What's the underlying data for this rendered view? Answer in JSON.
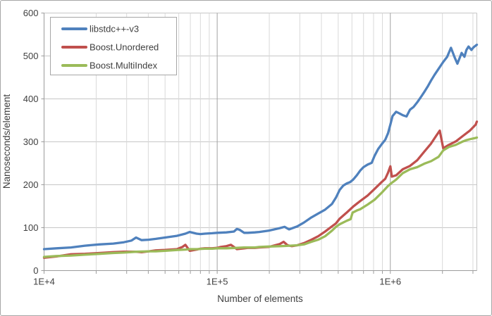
{
  "chart_data": {
    "type": "line",
    "title": "",
    "xlabel": "Number of elements",
    "ylabel": "Nanoseconds/element",
    "x_axis": {
      "scale": "log",
      "min": 10000,
      "max": 3160000,
      "ticks": [
        {
          "value": 10000,
          "label": "1E+4"
        },
        {
          "value": 100000,
          "label": "1E+5"
        },
        {
          "value": 1000000,
          "label": "1E+6"
        }
      ]
    },
    "y_axis": {
      "min": 0,
      "max": 600,
      "step": 100,
      "tick_labels": [
        "0",
        "100",
        "200",
        "300",
        "400",
        "500",
        "600"
      ]
    },
    "grid": {
      "horizontal_color": "#c6c6c6",
      "minor_vertical_color": "#d9d9d9",
      "major_vertical_color": "#a3a3a3",
      "axis_color": "#9c9c9c"
    },
    "legend": {
      "position": "top-left",
      "border_color": "#a6a6a6",
      "background": "#ffffff"
    },
    "series": [
      {
        "name": "libstdc++-v3",
        "color": "#4F81BD",
        "points": [
          [
            10000,
            50
          ],
          [
            11800,
            52
          ],
          [
            14300,
            54
          ],
          [
            17200,
            58
          ],
          [
            20800,
            61
          ],
          [
            25100,
            63
          ],
          [
            28900,
            66
          ],
          [
            32000,
            70
          ],
          [
            34000,
            77
          ],
          [
            36600,
            71
          ],
          [
            40200,
            72
          ],
          [
            44200,
            74
          ],
          [
            50000,
            77
          ],
          [
            58500,
            81
          ],
          [
            65500,
            86
          ],
          [
            69400,
            90
          ],
          [
            76000,
            86
          ],
          [
            80000,
            85
          ],
          [
            85000,
            86
          ],
          [
            93500,
            87
          ],
          [
            100000,
            88
          ],
          [
            113000,
            89
          ],
          [
            125000,
            91
          ],
          [
            130000,
            97
          ],
          [
            135000,
            95
          ],
          [
            143000,
            88
          ],
          [
            150000,
            88
          ],
          [
            165000,
            89
          ],
          [
            175000,
            90
          ],
          [
            198000,
            93
          ],
          [
            230000,
            99
          ],
          [
            245000,
            102
          ],
          [
            260000,
            96
          ],
          [
            290000,
            103
          ],
          [
            317000,
            112
          ],
          [
            350000,
            124
          ],
          [
            383000,
            133
          ],
          [
            420000,
            142
          ],
          [
            460000,
            155
          ],
          [
            485000,
            170
          ],
          [
            510000,
            188
          ],
          [
            535000,
            198
          ],
          [
            560000,
            203
          ],
          [
            585000,
            206
          ],
          [
            610000,
            212
          ],
          [
            640000,
            222
          ],
          [
            670000,
            233
          ],
          [
            700000,
            241
          ],
          [
            740000,
            247
          ],
          [
            780000,
            251
          ],
          [
            810000,
            267
          ],
          [
            850000,
            283
          ],
          [
            890000,
            294
          ],
          [
            935000,
            305
          ],
          [
            970000,
            320
          ],
          [
            1000000,
            340
          ],
          [
            1030000,
            360
          ],
          [
            1080000,
            370
          ],
          [
            1130000,
            366
          ],
          [
            1180000,
            362
          ],
          [
            1240000,
            359
          ],
          [
            1300000,
            375
          ],
          [
            1360000,
            381
          ],
          [
            1430000,
            392
          ],
          [
            1500000,
            404
          ],
          [
            1570000,
            416
          ],
          [
            1650000,
            430
          ],
          [
            1720000,
            443
          ],
          [
            1800000,
            456
          ],
          [
            1900000,
            470
          ],
          [
            2020000,
            486
          ],
          [
            2130000,
            498
          ],
          [
            2240000,
            519
          ],
          [
            2350000,
            497
          ],
          [
            2440000,
            482
          ],
          [
            2580000,
            507
          ],
          [
            2680000,
            498
          ],
          [
            2750000,
            514
          ],
          [
            2830000,
            522
          ],
          [
            2940000,
            514
          ],
          [
            3020000,
            520
          ],
          [
            3160000,
            526
          ]
        ]
      },
      {
        "name": "Boost.Unordered",
        "color": "#C0504D",
        "points": [
          [
            10000,
            30
          ],
          [
            11800,
            33
          ],
          [
            14300,
            38
          ],
          [
            17200,
            39
          ],
          [
            20800,
            41
          ],
          [
            25100,
            43
          ],
          [
            28900,
            44
          ],
          [
            34000,
            44
          ],
          [
            36600,
            43
          ],
          [
            40200,
            45
          ],
          [
            44200,
            47
          ],
          [
            50000,
            48
          ],
          [
            58500,
            50
          ],
          [
            63000,
            55
          ],
          [
            65500,
            60
          ],
          [
            69400,
            46
          ],
          [
            76000,
            49
          ],
          [
            80000,
            51
          ],
          [
            85000,
            52
          ],
          [
            93500,
            52
          ],
          [
            100000,
            53
          ],
          [
            105000,
            55
          ],
          [
            113000,
            57
          ],
          [
            120000,
            60
          ],
          [
            130000,
            50
          ],
          [
            143000,
            52
          ],
          [
            150000,
            53
          ],
          [
            165000,
            53
          ],
          [
            175000,
            54
          ],
          [
            198000,
            55
          ],
          [
            230000,
            62
          ],
          [
            242000,
            67
          ],
          [
            255000,
            59
          ],
          [
            270000,
            57
          ],
          [
            290000,
            59
          ],
          [
            317000,
            64
          ],
          [
            350000,
            72
          ],
          [
            383000,
            80
          ],
          [
            420000,
            91
          ],
          [
            460000,
            103
          ],
          [
            485000,
            110
          ],
          [
            510000,
            121
          ],
          [
            555000,
            134
          ],
          [
            610000,
            149
          ],
          [
            670000,
            162
          ],
          [
            740000,
            175
          ],
          [
            810000,
            190
          ],
          [
            890000,
            206
          ],
          [
            935000,
            214
          ],
          [
            970000,
            228
          ],
          [
            1000000,
            243
          ],
          [
            1020000,
            219
          ],
          [
            1080000,
            222
          ],
          [
            1180000,
            236
          ],
          [
            1300000,
            244
          ],
          [
            1430000,
            257
          ],
          [
            1570000,
            277
          ],
          [
            1720000,
            296
          ],
          [
            1840000,
            314
          ],
          [
            1930000,
            326
          ],
          [
            2020000,
            285
          ],
          [
            2180000,
            293
          ],
          [
            2390000,
            301
          ],
          [
            2630000,
            314
          ],
          [
            2880000,
            326
          ],
          [
            3110000,
            340
          ],
          [
            3160000,
            347
          ]
        ]
      },
      {
        "name": "Boost.MultiIndex",
        "color": "#9BBB59",
        "points": [
          [
            10000,
            32
          ],
          [
            11800,
            34
          ],
          [
            14300,
            35
          ],
          [
            17200,
            37
          ],
          [
            20800,
            39
          ],
          [
            25100,
            41
          ],
          [
            28900,
            42
          ],
          [
            34000,
            44
          ],
          [
            40200,
            45
          ],
          [
            44200,
            45
          ],
          [
            50000,
            46
          ],
          [
            58500,
            48
          ],
          [
            65500,
            49
          ],
          [
            69400,
            50
          ],
          [
            76000,
            50
          ],
          [
            85000,
            51
          ],
          [
            93500,
            51
          ],
          [
            100000,
            52
          ],
          [
            113000,
            52
          ],
          [
            130000,
            53
          ],
          [
            143000,
            54
          ],
          [
            165000,
            54
          ],
          [
            175000,
            55
          ],
          [
            198000,
            56
          ],
          [
            235000,
            57
          ],
          [
            263000,
            58
          ],
          [
            290000,
            59
          ],
          [
            317000,
            61
          ],
          [
            350000,
            67
          ],
          [
            383000,
            72
          ],
          [
            420000,
            80
          ],
          [
            460000,
            93
          ],
          [
            485000,
            102
          ],
          [
            510000,
            108
          ],
          [
            560000,
            116
          ],
          [
            590000,
            120
          ],
          [
            605000,
            135
          ],
          [
            640000,
            140
          ],
          [
            670000,
            143
          ],
          [
            740000,
            154
          ],
          [
            810000,
            165
          ],
          [
            890000,
            181
          ],
          [
            970000,
            197
          ],
          [
            1000000,
            202
          ],
          [
            1080000,
            212
          ],
          [
            1180000,
            227
          ],
          [
            1300000,
            236
          ],
          [
            1430000,
            241
          ],
          [
            1570000,
            249
          ],
          [
            1720000,
            255
          ],
          [
            1900000,
            265
          ],
          [
            2020000,
            280
          ],
          [
            2180000,
            288
          ],
          [
            2390000,
            293
          ],
          [
            2630000,
            301
          ],
          [
            2750000,
            304
          ],
          [
            2880000,
            306
          ],
          [
            3110000,
            309
          ],
          [
            3160000,
            310
          ]
        ]
      }
    ]
  }
}
